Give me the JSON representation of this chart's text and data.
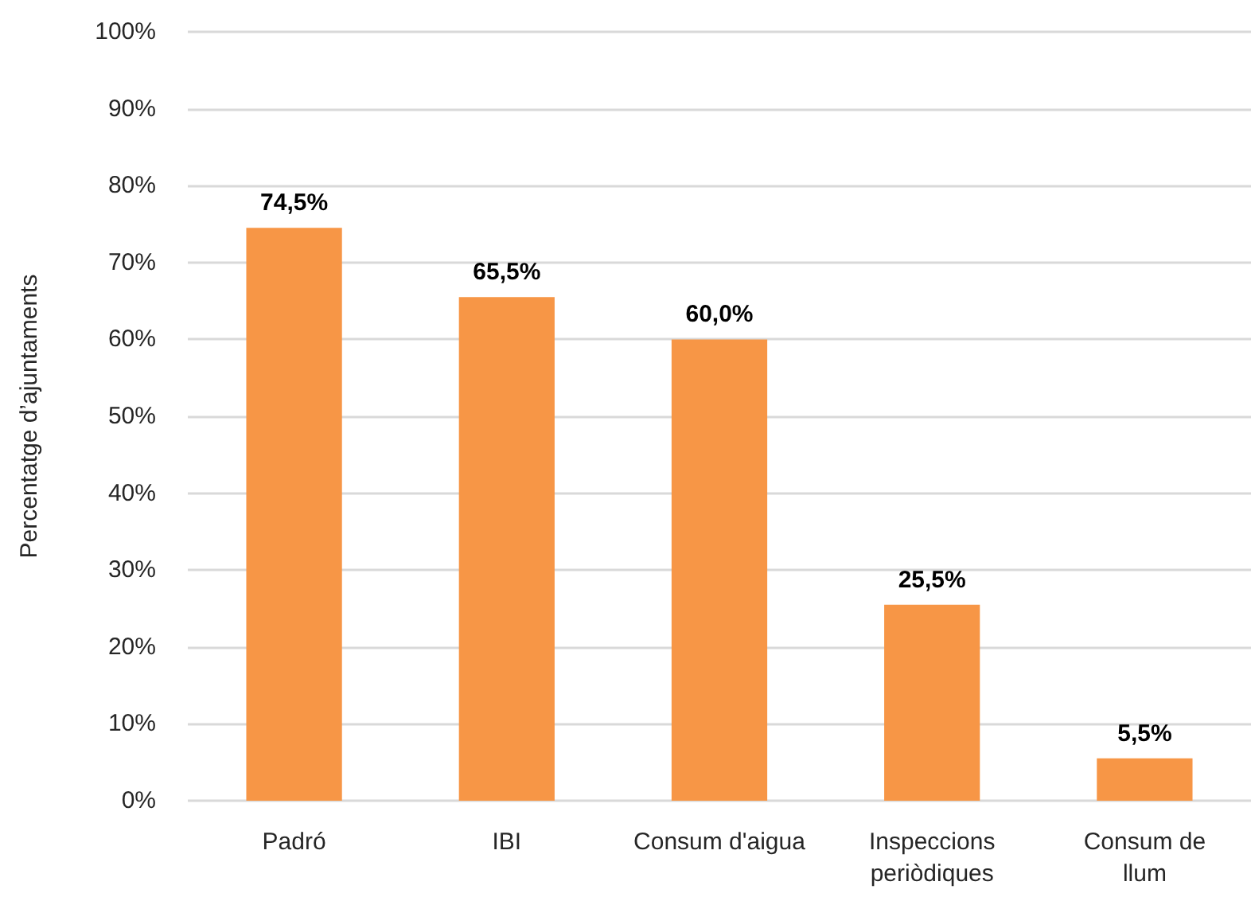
{
  "chart_data": {
    "type": "bar",
    "ylabel": "Percentatge d’ajuntaments",
    "categories": [
      "Padró",
      "IBI",
      "Consum d'aigua",
      "Inspeccions\nperiòdiques",
      "Consum de\nllum"
    ],
    "values": [
      74.5,
      65.5,
      60.0,
      25.5,
      5.5
    ],
    "value_labels": [
      "74,5%",
      "65,5%",
      "60,0%",
      "25,5%",
      "5,5%"
    ],
    "color": "#f79646",
    "ylim": [
      0,
      100
    ],
    "yticks": [
      {
        "value": 0,
        "label": "0%"
      },
      {
        "value": 10,
        "label": "10%"
      },
      {
        "value": 20,
        "label": "20%"
      },
      {
        "value": 30,
        "label": "30%"
      },
      {
        "value": 40,
        "label": "40%"
      },
      {
        "value": 50,
        "label": "50%"
      },
      {
        "value": 60,
        "label": "60%"
      },
      {
        "value": 70,
        "label": "70%"
      },
      {
        "value": 80,
        "label": "80%"
      },
      {
        "value": 90,
        "label": "90%"
      },
      {
        "value": 100,
        "label": "100%"
      }
    ],
    "grid": "y"
  }
}
